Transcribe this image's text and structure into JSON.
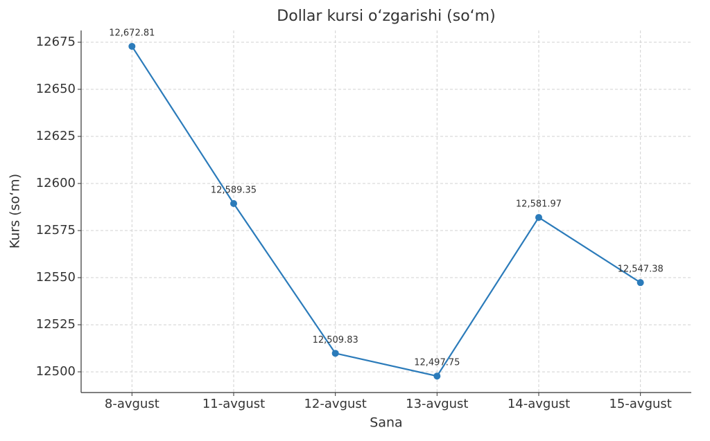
{
  "chart_data": {
    "type": "line",
    "title": "Dollar kursi o‘zgarishi (so‘m)",
    "x_label": "Sana",
    "y_label": "Kurs (so‘m)",
    "categories": [
      "8-avgust",
      "11-avgust",
      "12-avgust",
      "13-avgust",
      "14-avgust",
      "15-avgust"
    ],
    "series": [
      {
        "name": "Kurs",
        "color": "#2b7bba",
        "values": [
          12672.81,
          12589.35,
          12509.83,
          12497.75,
          12581.97,
          12547.38
        ],
        "value_labels": [
          "12,672.81",
          "12,589.35",
          "12,509.83",
          "12,497.75",
          "12,581.97",
          "12,547.38"
        ]
      }
    ],
    "ylim": [
      12489,
      12681.25
    ],
    "yticks": [
      12500,
      12525,
      12550,
      12575,
      12600,
      12625,
      12650,
      12675
    ],
    "grid": true
  }
}
